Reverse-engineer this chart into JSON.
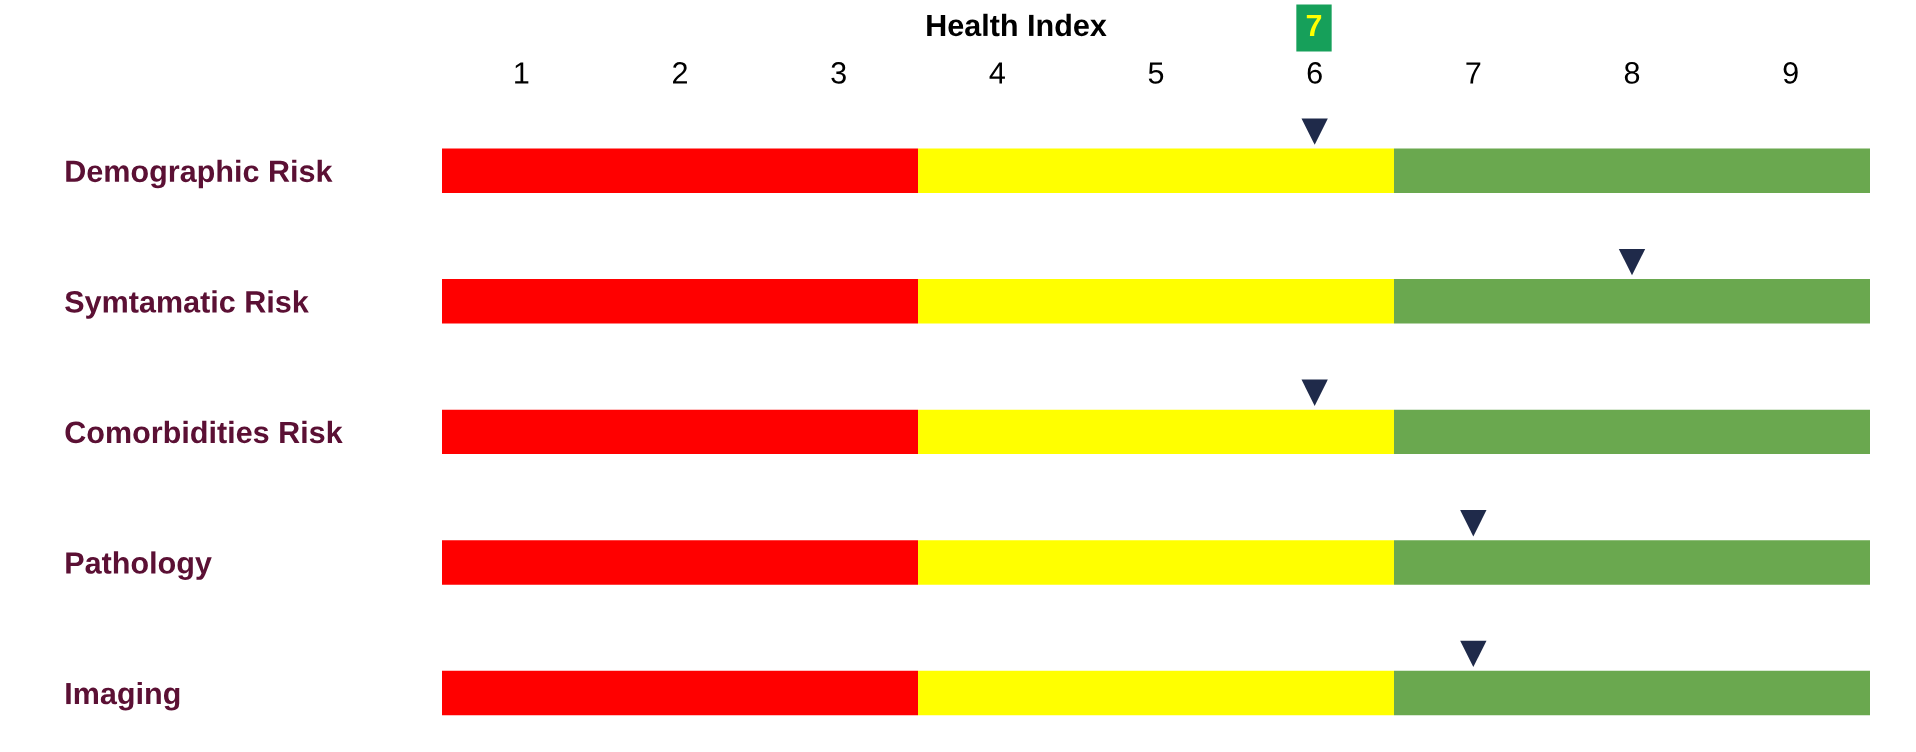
{
  "chart_data": {
    "type": "bar",
    "orientation": "horizontal",
    "title": "Health Index",
    "categories": [
      "Demographic Risk",
      "Symtamatic Risk",
      "Comorbidities Risk",
      "Pathology",
      "Imaging"
    ],
    "series": [
      {
        "type": "bar",
        "color": "#ff0000",
        "base": [
          0.5,
          0.5,
          0.5,
          0.5,
          0.5
        ],
        "values": [
          3,
          3,
          3,
          3,
          3
        ]
      },
      {
        "type": "bar",
        "color": "#ffff00",
        "base": [
          3.5,
          3.5,
          3.5,
          3.5,
          3.5
        ],
        "values": [
          3,
          3,
          3,
          3,
          3
        ]
      },
      {
        "type": "bar",
        "color": "#6aa84f",
        "base": [
          6.5,
          6.5,
          6.5,
          6.5,
          6.5
        ],
        "values": [
          3,
          3,
          3,
          3,
          3
        ]
      },
      {
        "type": "scatter",
        "color": "#1f2a4a",
        "marker": "triangle",
        "values": [
          6,
          8,
          6,
          7,
          7
        ]
      }
    ],
    "xlim": [
      0.5,
      9.5
    ],
    "xticks": [
      1,
      2,
      3,
      4,
      5,
      6,
      7,
      8,
      9
    ],
    "annotations": [
      "7"
    ],
    "grid": false
  }
}
